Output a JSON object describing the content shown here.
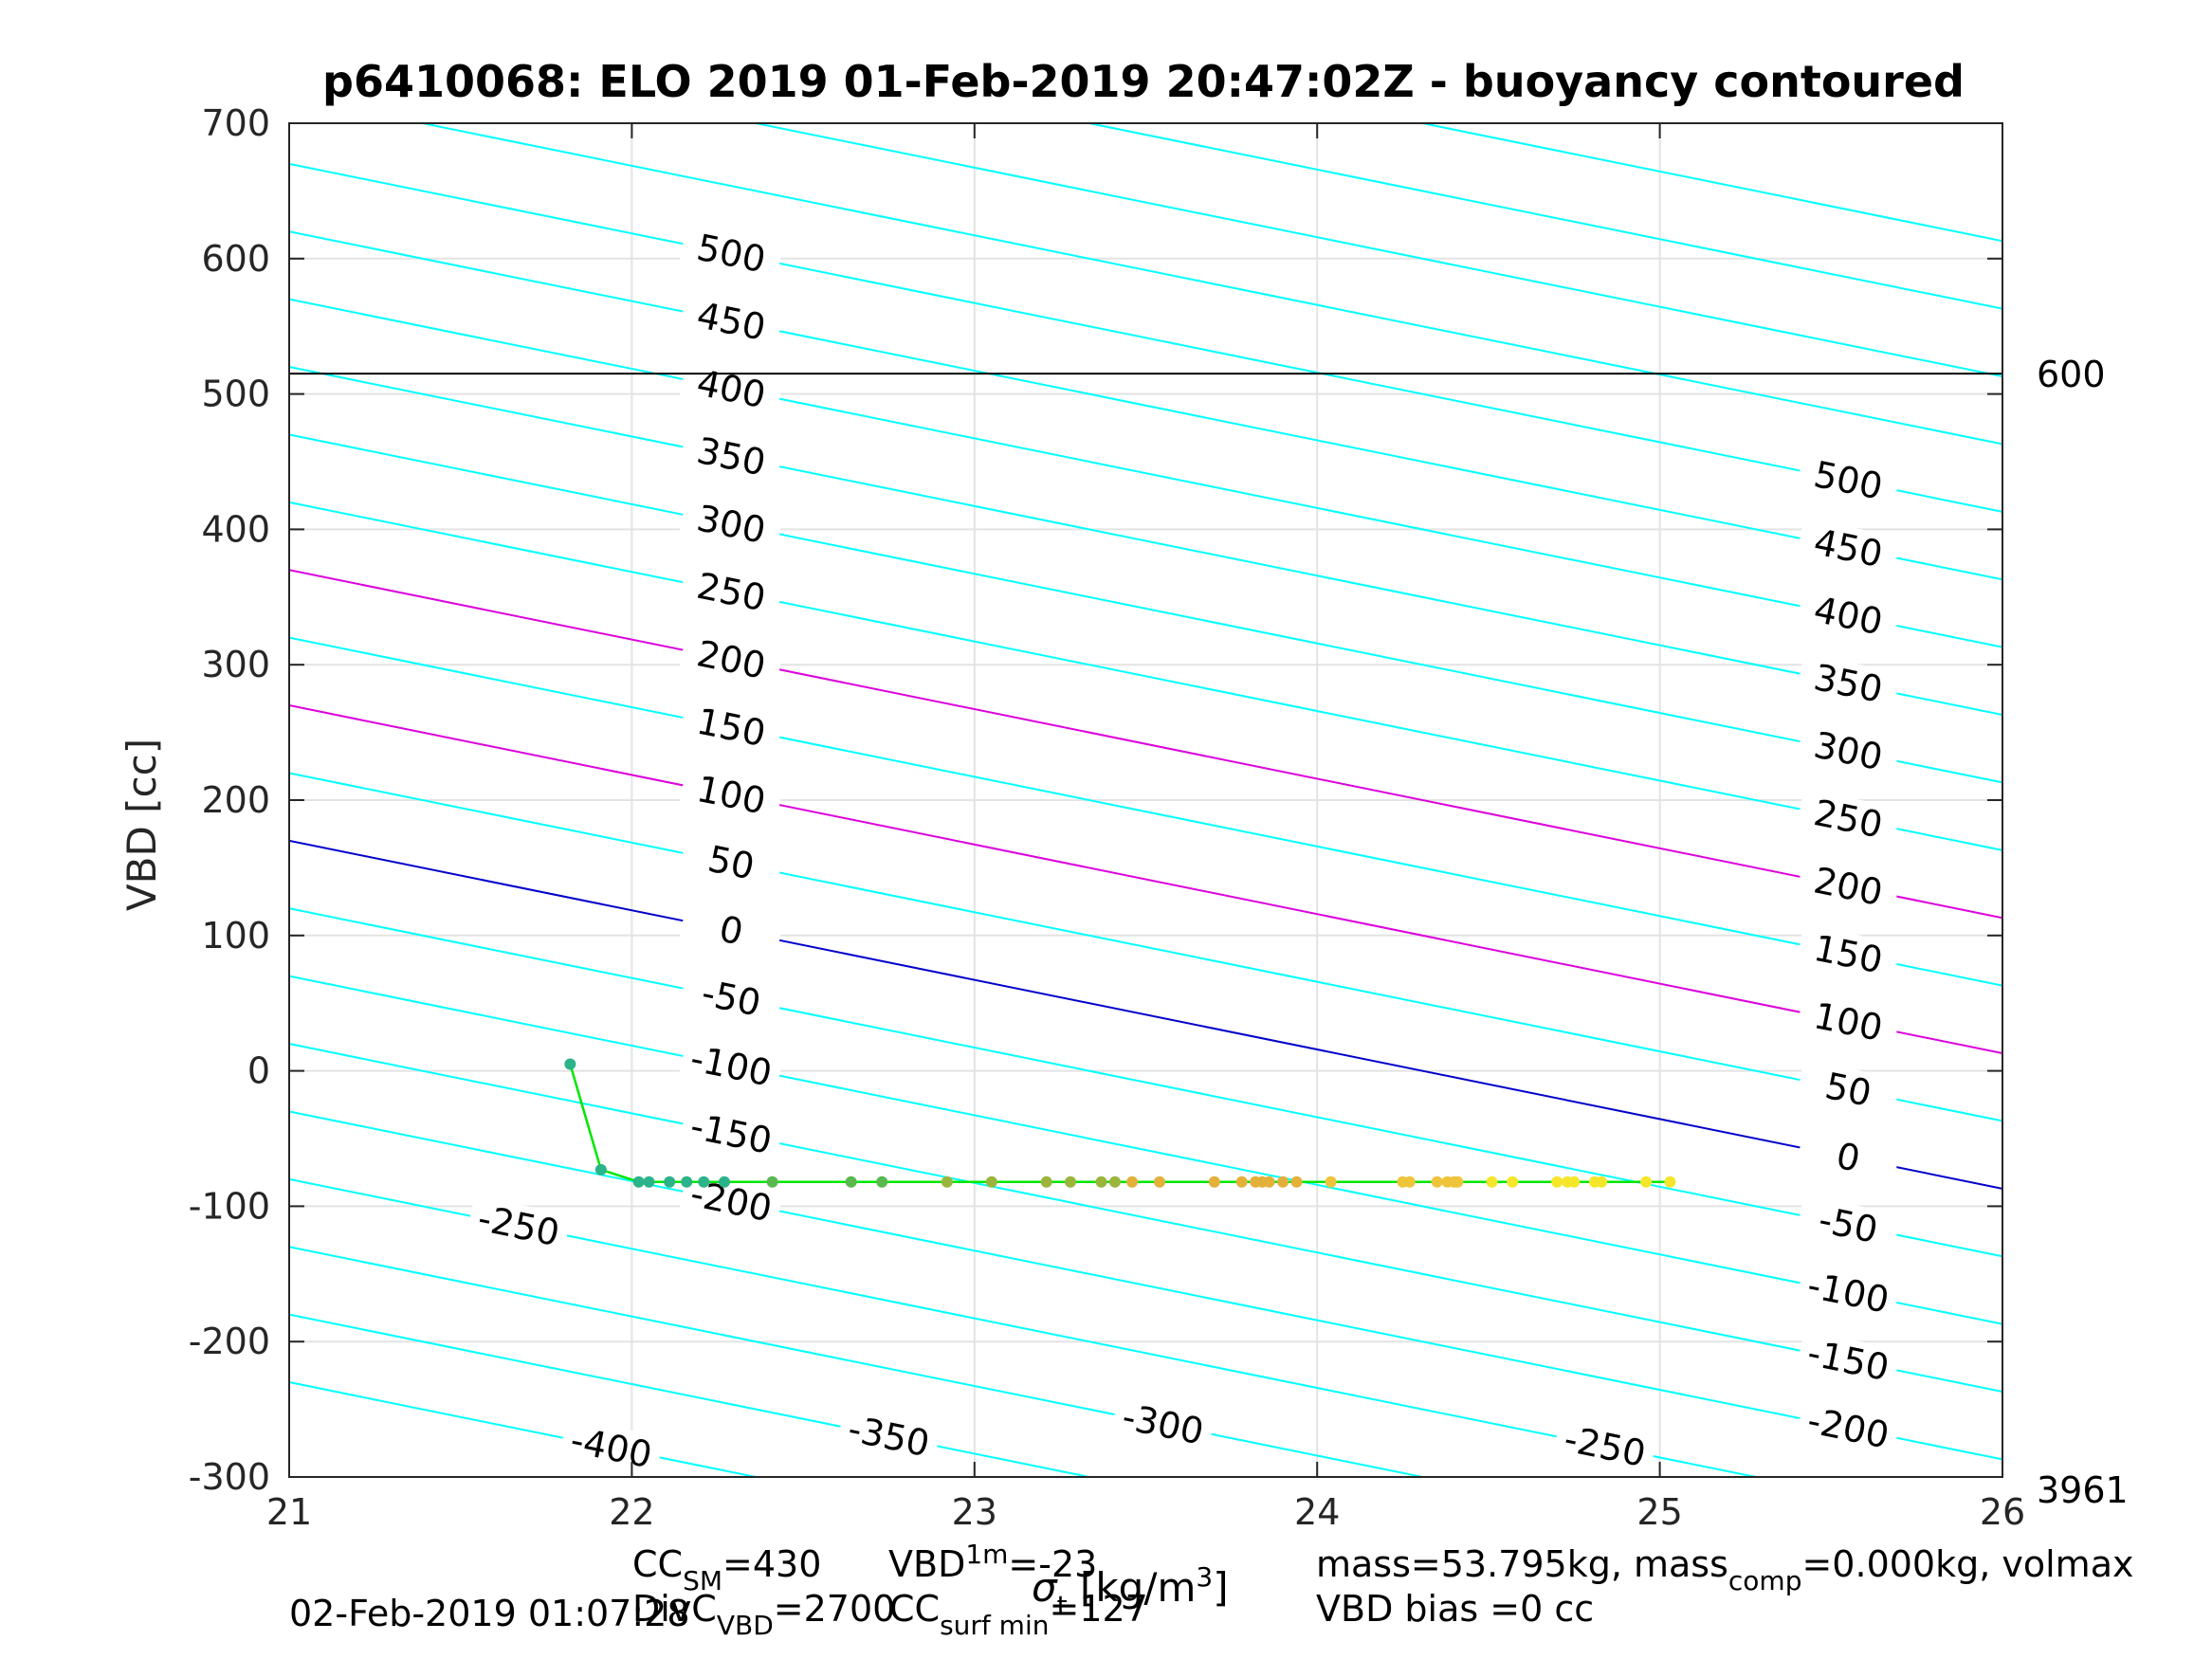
{
  "chart_data": {
    "type": "line",
    "title": "p6410068: ELO 2019 01-Feb-2019 20:47:02Z - buoyancy contoured",
    "xlabel": "",
    "ylabel": "VBD [cc]",
    "xlim": [
      21,
      26
    ],
    "ylim": [
      -300,
      700
    ],
    "x_ticks": [
      21,
      22,
      23,
      24,
      25,
      26
    ],
    "y_ticks": [
      -300,
      -200,
      -100,
      0,
      100,
      200,
      300,
      400,
      500,
      600,
      700
    ],
    "grid": true,
    "contours": {
      "levels": [
        -400,
        -350,
        -300,
        -250,
        -200,
        -150,
        -100,
        -50,
        0,
        50,
        100,
        150,
        200,
        250,
        300,
        350,
        400,
        450,
        500,
        550,
        600,
        650,
        700
      ],
      "labeled_left": [
        500,
        450,
        400,
        350,
        300,
        250,
        200,
        150,
        100,
        50,
        0,
        -50,
        -100,
        -150,
        -200,
        -250
      ],
      "labeled_right": [
        500,
        450,
        400,
        350,
        300,
        250,
        200,
        150,
        100,
        50,
        0,
        -50,
        -100,
        -150,
        -200
      ],
      "labeled_bottom": [
        -400,
        -350,
        -300,
        -250
      ],
      "colors": {
        "default": "#00ffff",
        "zero": "#0000cc",
        "highlight": "#dd00dd"
      },
      "highlight_levels": [
        100,
        200
      ]
    },
    "horizontal_line": {
      "y": 515,
      "right_label": "600",
      "color": "#000000"
    },
    "bottom_right_label": "3961",
    "series": [
      {
        "x": [
          21.82,
          21.91,
          22.02,
          22.05,
          22.11,
          22.16,
          22.21,
          22.27,
          22.41,
          22.64,
          22.73,
          22.92,
          23.05,
          23.21,
          23.28,
          23.37,
          23.41,
          23.46,
          23.54,
          23.7,
          23.78,
          23.82,
          23.84,
          23.86,
          23.9,
          23.94,
          24.04,
          24.25,
          24.27,
          24.35,
          24.38,
          24.4,
          24.41,
          24.51,
          24.57,
          24.7,
          24.73,
          24.75,
          24.81,
          24.83,
          24.96,
          25.03
        ],
        "values": [
          5,
          -73,
          -82,
          -82,
          -82,
          -82,
          -82,
          -82,
          -82,
          -82,
          -82,
          -82,
          -82,
          -82,
          -82,
          -82,
          -82,
          -82,
          -82,
          -82,
          -82,
          -82,
          -82,
          -82,
          -82,
          -82,
          -82,
          -82,
          -82,
          -82,
          -82,
          -82,
          -82,
          -82,
          -82,
          -82,
          -82,
          -82,
          -82,
          -82,
          -82,
          -82
        ],
        "line_color": "#00e600",
        "point_colormap": [
          "#2bb38a",
          "#59b84e",
          "#9bb53c",
          "#e3b03a",
          "#f0c43a",
          "#f5e62b"
        ]
      }
    ]
  },
  "footer": {
    "line1_cc": "CC",
    "line1_cc_sub": "SM",
    "line1_cc_val": "=430",
    "line1_vbd": "VBD",
    "line1_vbd_sub": "1m",
    "line1_vbd_val": "=-23",
    "overlap_xlabel": "σ",
    "overlap_xlabel_sub": "t",
    "overlap_xlabel_unit": "[kg/m",
    "overlap_xlabel_sup": "3",
    "overlap_xlabel_end": "]",
    "line2_date": "02-Feb-2019 01:07:28",
    "line2_div": "DivC",
    "line2_div_sub": "VBD",
    "line2_div_val": "=2700",
    "line2_cc": "CC",
    "line2_cc_sub": "surf min",
    "line2_cc_val": "=127",
    "right_line1": "mass=53.795kg, mass",
    "right_line1_sub": "comp",
    "right_line1_end": "=0.000kg, volmax",
    "right_line2": "VBD bias =0 cc"
  }
}
